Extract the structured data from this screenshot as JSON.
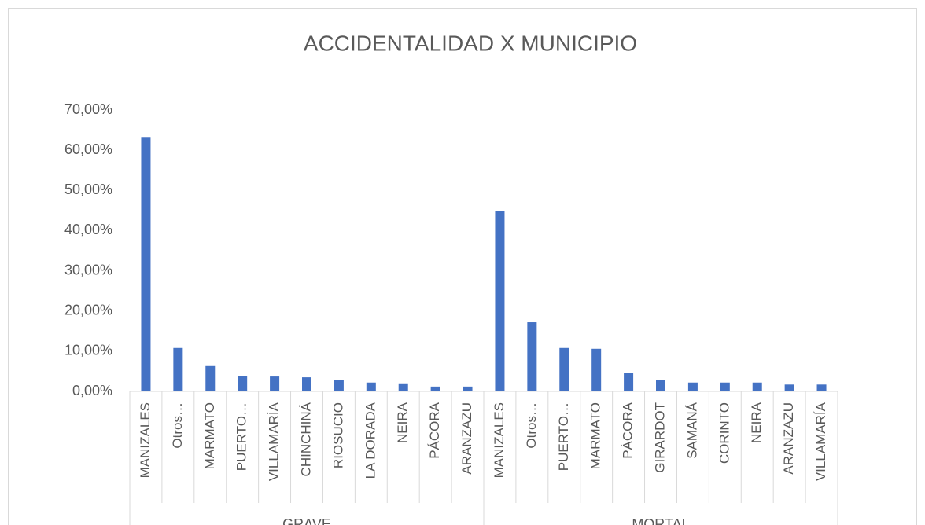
{
  "chart_data": {
    "type": "bar",
    "title": "ACCIDENTALIDAD X MUNICIPIO",
    "color": "#4472c4",
    "groups": [
      {
        "name": "GRAVE",
        "categories": [
          "MANIZALES",
          "Otros…",
          "MARMATO",
          "PUERTO…",
          "VILLAMARÍA",
          "CHINCHINÁ",
          "RIOSUCIO",
          "LA DORADA",
          "NEIRA",
          "PÁCORA",
          "ARANZAZU"
        ],
        "values": [
          63.3,
          10.8,
          6.3,
          3.9,
          3.7,
          3.5,
          2.9,
          2.2,
          2.0,
          1.2,
          1.2
        ]
      },
      {
        "name": "MORTAL",
        "categories": [
          "MANIZALES",
          "Otros…",
          "PUERTO…",
          "MARMATO",
          "PÁCORA",
          "GIRARDOT",
          "SAMANÁ",
          "CORINTO",
          "NEIRA",
          "ARANZAZU",
          "VILLAMARÍA"
        ],
        "values": [
          44.8,
          17.2,
          10.8,
          10.6,
          4.5,
          2.9,
          2.2,
          2.2,
          2.2,
          1.7,
          1.7
        ]
      }
    ],
    "ylim": [
      0,
      70
    ],
    "yticks": [
      {
        "value": 0,
        "label": "0,00%"
      },
      {
        "value": 10,
        "label": "10,00%"
      },
      {
        "value": 20,
        "label": "20,00%"
      },
      {
        "value": 30,
        "label": "30,00%"
      },
      {
        "value": 40,
        "label": "40,00%"
      },
      {
        "value": 50,
        "label": "50,00%"
      },
      {
        "value": 60,
        "label": "60,00%"
      },
      {
        "value": 70,
        "label": "70,00%"
      }
    ],
    "grid": false
  }
}
